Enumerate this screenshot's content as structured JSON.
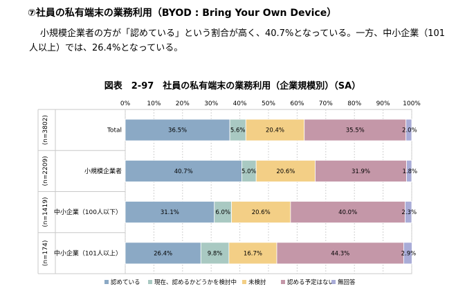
{
  "heading": "⑦社員の私有端末の業務利用（BYOD : Bring Your Own Device）",
  "paragraph": {
    "line1": "小規模企業者の方が「認めている」という割合が高く、40.7%となっている。一方、中小企業（101",
    "line2": "人以上）では、26.4%となっている。"
  },
  "chart_data": {
    "type": "bar",
    "orientation": "horizontal",
    "stacked": true,
    "title": "図表　2-97　社員の私有端末の業務利用（企業規模別）（SA）",
    "xlim": [
      0,
      100
    ],
    "x_ticks": [
      "0%",
      "10%",
      "20%",
      "30%",
      "40%",
      "50%",
      "60%",
      "70%",
      "80%",
      "90%",
      "100%"
    ],
    "categories": [
      "Total",
      "小規模企業者",
      "中小企業（100人以下）",
      "中小企業（101人以上）"
    ],
    "sample_sizes": [
      "(n=3802)",
      "(n=2209)",
      "(n=1419)",
      "(n=174)"
    ],
    "series": [
      {
        "name": "認めている",
        "color": "#8ba9c5",
        "values": [
          36.5,
          40.7,
          31.1,
          26.4
        ],
        "labels": [
          "36.5%",
          "40.7%",
          "31.1%",
          "26.4%"
        ]
      },
      {
        "name": "現在、認めるかどうかを検討中",
        "color": "#a9c9c2",
        "values": [
          5.6,
          5.0,
          6.0,
          9.8
        ],
        "labels": [
          "5.6%",
          "5.0%",
          "6.0%",
          "9.8%"
        ]
      },
      {
        "name": "未検討",
        "color": "#f3cf86",
        "values": [
          20.4,
          20.6,
          20.6,
          16.7
        ],
        "labels": [
          "20.4%",
          "20.6%",
          "20.6%",
          "16.7%"
        ]
      },
      {
        "name": "認める予定はない",
        "color": "#c497a8",
        "values": [
          35.5,
          31.9,
          40.0,
          44.3
        ],
        "labels": [
          "35.5%",
          "31.9%",
          "40.0%",
          "44.3%"
        ]
      },
      {
        "name": "無回答",
        "color": "#a9acd7",
        "values": [
          2.0,
          1.8,
          2.3,
          2.9
        ],
        "labels": [
          "2.0%",
          "1.8%",
          "2.3%",
          "2.9%"
        ]
      }
    ],
    "legend_position": "bottom",
    "grid": true
  }
}
